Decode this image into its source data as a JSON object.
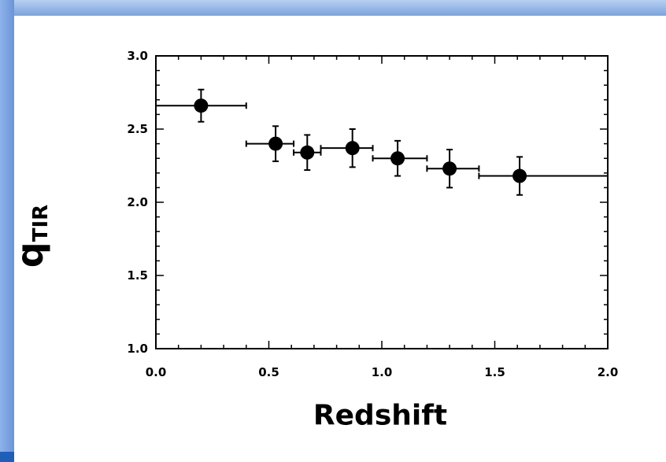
{
  "chart_data": {
    "type": "scatter",
    "xlabel": "Redshift",
    "ylabel": "q",
    "ylabel_subscript": "TIR",
    "xlim": [
      0.0,
      2.0
    ],
    "ylim": [
      1.0,
      3.0
    ],
    "x_ticks": [
      "0.0",
      "0.5",
      "1.0",
      "1.5",
      "2.0"
    ],
    "y_ticks": [
      "1.0",
      "1.5",
      "2.0",
      "2.5",
      "3.0"
    ],
    "grid": false,
    "points": [
      {
        "x": 0.2,
        "y": 2.66,
        "x_lo": 0.0,
        "x_hi": 0.4,
        "y_err": 0.11
      },
      {
        "x": 0.53,
        "y": 2.4,
        "x_lo": 0.4,
        "x_hi": 0.61,
        "y_err": 0.12
      },
      {
        "x": 0.67,
        "y": 2.34,
        "x_lo": 0.61,
        "x_hi": 0.73,
        "y_err": 0.12
      },
      {
        "x": 0.87,
        "y": 2.37,
        "x_lo": 0.73,
        "x_hi": 0.96,
        "y_err": 0.13
      },
      {
        "x": 1.07,
        "y": 2.3,
        "x_lo": 0.96,
        "x_hi": 1.2,
        "y_err": 0.12
      },
      {
        "x": 1.3,
        "y": 2.23,
        "x_lo": 1.2,
        "x_hi": 1.43,
        "y_err": 0.13
      },
      {
        "x": 1.61,
        "y": 2.18,
        "x_lo": 1.43,
        "x_hi": 2.0,
        "y_err": 0.13
      }
    ],
    "marker_color": "#000000"
  }
}
